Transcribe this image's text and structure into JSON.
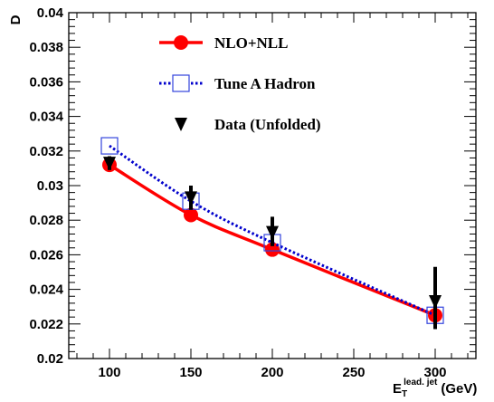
{
  "chart_data": {
    "type": "line",
    "xlabel": {
      "main": "E",
      "sub": "T",
      "sup": "lead. jet",
      "unit": "(GeV)"
    },
    "ylabel": "D",
    "xlim": [
      75,
      325
    ],
    "ylim": [
      0.02,
      0.04
    ],
    "x_ticks": [
      100,
      150,
      200,
      250,
      300
    ],
    "y_ticks": [
      0.02,
      0.022,
      0.024,
      0.026,
      0.028,
      0.03,
      0.032,
      0.034,
      0.036,
      0.038,
      0.04
    ],
    "y_tick_labels": [
      "0.02",
      "0.022",
      "0.024",
      "0.026",
      "0.028",
      "0.03",
      "0.032",
      "0.034",
      "0.036",
      "0.038",
      "0.04"
    ],
    "grid": false,
    "legend_position": "top",
    "series": [
      {
        "name": "NLO+NLL",
        "style": "solid-line-filled-circle",
        "color": "#ff0000",
        "x": [
          100,
          150,
          200,
          300
        ],
        "y": [
          0.0312,
          0.0283,
          0.0263,
          0.0225
        ]
      },
      {
        "name": "Tune A Hadron",
        "style": "dotted-line-open-square",
        "color": "#0000cc",
        "x": [
          100,
          150,
          200,
          300
        ],
        "y": [
          0.0323,
          0.0291,
          0.0267,
          0.0225
        ]
      },
      {
        "name": "Data (Unfolded)",
        "style": "down-triangle-with-error-bar",
        "color": "#000000",
        "x": [
          100,
          150,
          200,
          300
        ],
        "y": [
          0.0313,
          0.0293,
          0.0273,
          0.0233
        ],
        "err_low": [
          0.0004,
          0.0007,
          0.0008,
          0.0016
        ],
        "err_high": [
          0.0004,
          0.0007,
          0.0009,
          0.002
        ]
      }
    ]
  }
}
